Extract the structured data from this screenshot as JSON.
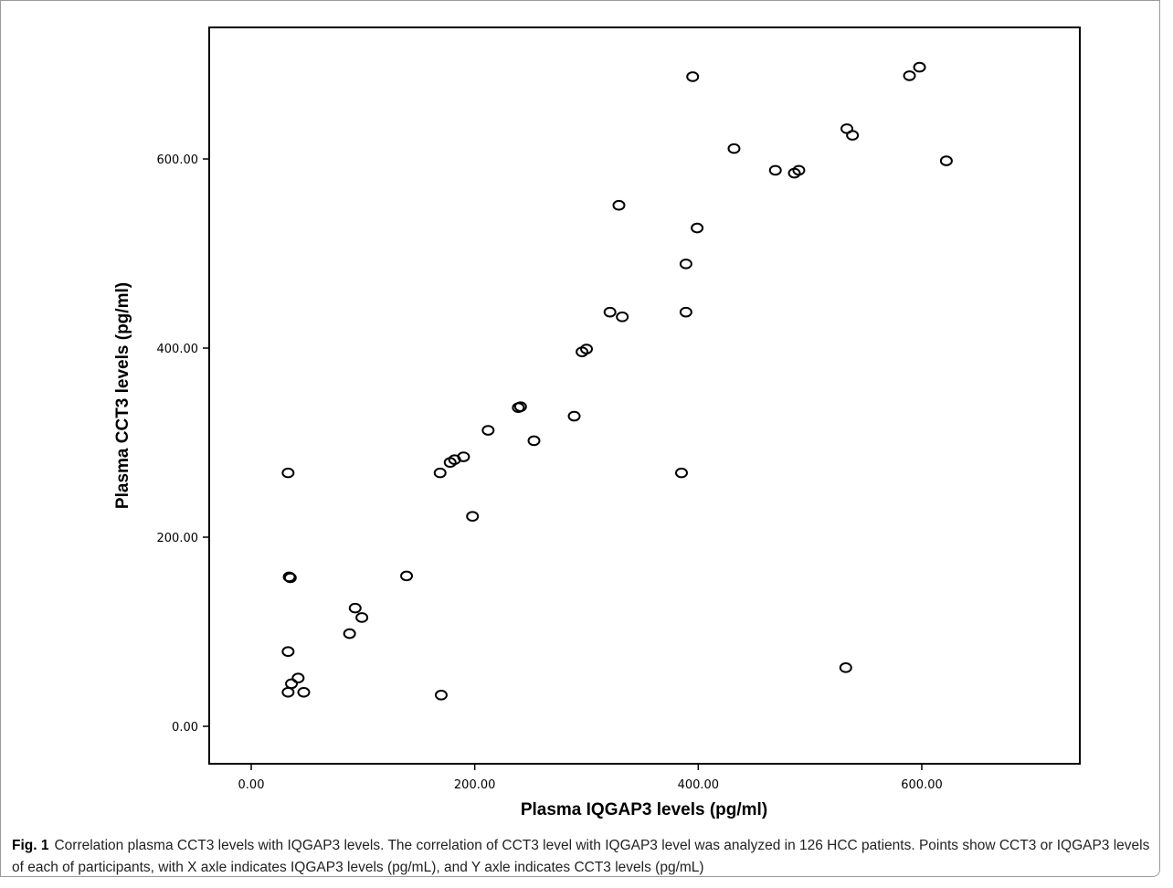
{
  "caption": {
    "figure_label": "Fig. 1",
    "text": "Correlation plasma CCT3 levels with IQGAP3 levels. The correlation of CCT3 level with IQGAP3 level was analyzed in 126 HCC patients. Points show CCT3 or IQGAP3 levels of each of participants, with X axle indicates IQGAP3 levels (pg/mL), and Y axle indicates CCT3 levels (pg/mL)"
  },
  "chart_data": {
    "type": "scatter",
    "title": "",
    "xlabel": "Plasma IQGAP3 levels (pg/ml)",
    "ylabel": "Plasma CCT3 levels (pg/ml)",
    "xlim": [
      -40,
      740
    ],
    "ylim": [
      -40,
      740
    ],
    "x_ticks": [
      0,
      200,
      400,
      600
    ],
    "x_tick_labels": [
      "0.00",
      "200.00",
      "400.00",
      "600.00"
    ],
    "y_ticks": [
      0,
      200,
      400,
      600
    ],
    "y_tick_labels": [
      "0.00",
      "200.00",
      "400.00",
      "600.00"
    ],
    "grid": false,
    "marker": "open-circle",
    "points": [
      [
        33,
        268
      ],
      [
        34,
        158
      ],
      [
        35,
        157
      ],
      [
        33,
        79
      ],
      [
        42,
        51
      ],
      [
        36,
        45
      ],
      [
        33,
        36
      ],
      [
        47,
        36
      ],
      [
        93,
        125
      ],
      [
        99,
        115
      ],
      [
        88,
        98
      ],
      [
        139,
        159
      ],
      [
        169,
        268
      ],
      [
        178,
        279
      ],
      [
        182,
        282
      ],
      [
        190,
        285
      ],
      [
        198,
        222
      ],
      [
        170,
        33
      ],
      [
        212,
        313
      ],
      [
        239,
        337
      ],
      [
        241,
        338
      ],
      [
        253,
        302
      ],
      [
        289,
        328
      ],
      [
        296,
        396
      ],
      [
        300,
        399
      ],
      [
        321,
        438
      ],
      [
        332,
        433
      ],
      [
        329,
        551
      ],
      [
        385,
        268
      ],
      [
        389,
        489
      ],
      [
        389,
        438
      ],
      [
        395,
        687
      ],
      [
        399,
        527
      ],
      [
        432,
        611
      ],
      [
        469,
        588
      ],
      [
        486,
        585
      ],
      [
        490,
        588
      ],
      [
        532,
        62
      ],
      [
        533,
        632
      ],
      [
        538,
        625
      ],
      [
        589,
        688
      ],
      [
        598,
        697
      ],
      [
        622,
        598
      ]
    ]
  }
}
